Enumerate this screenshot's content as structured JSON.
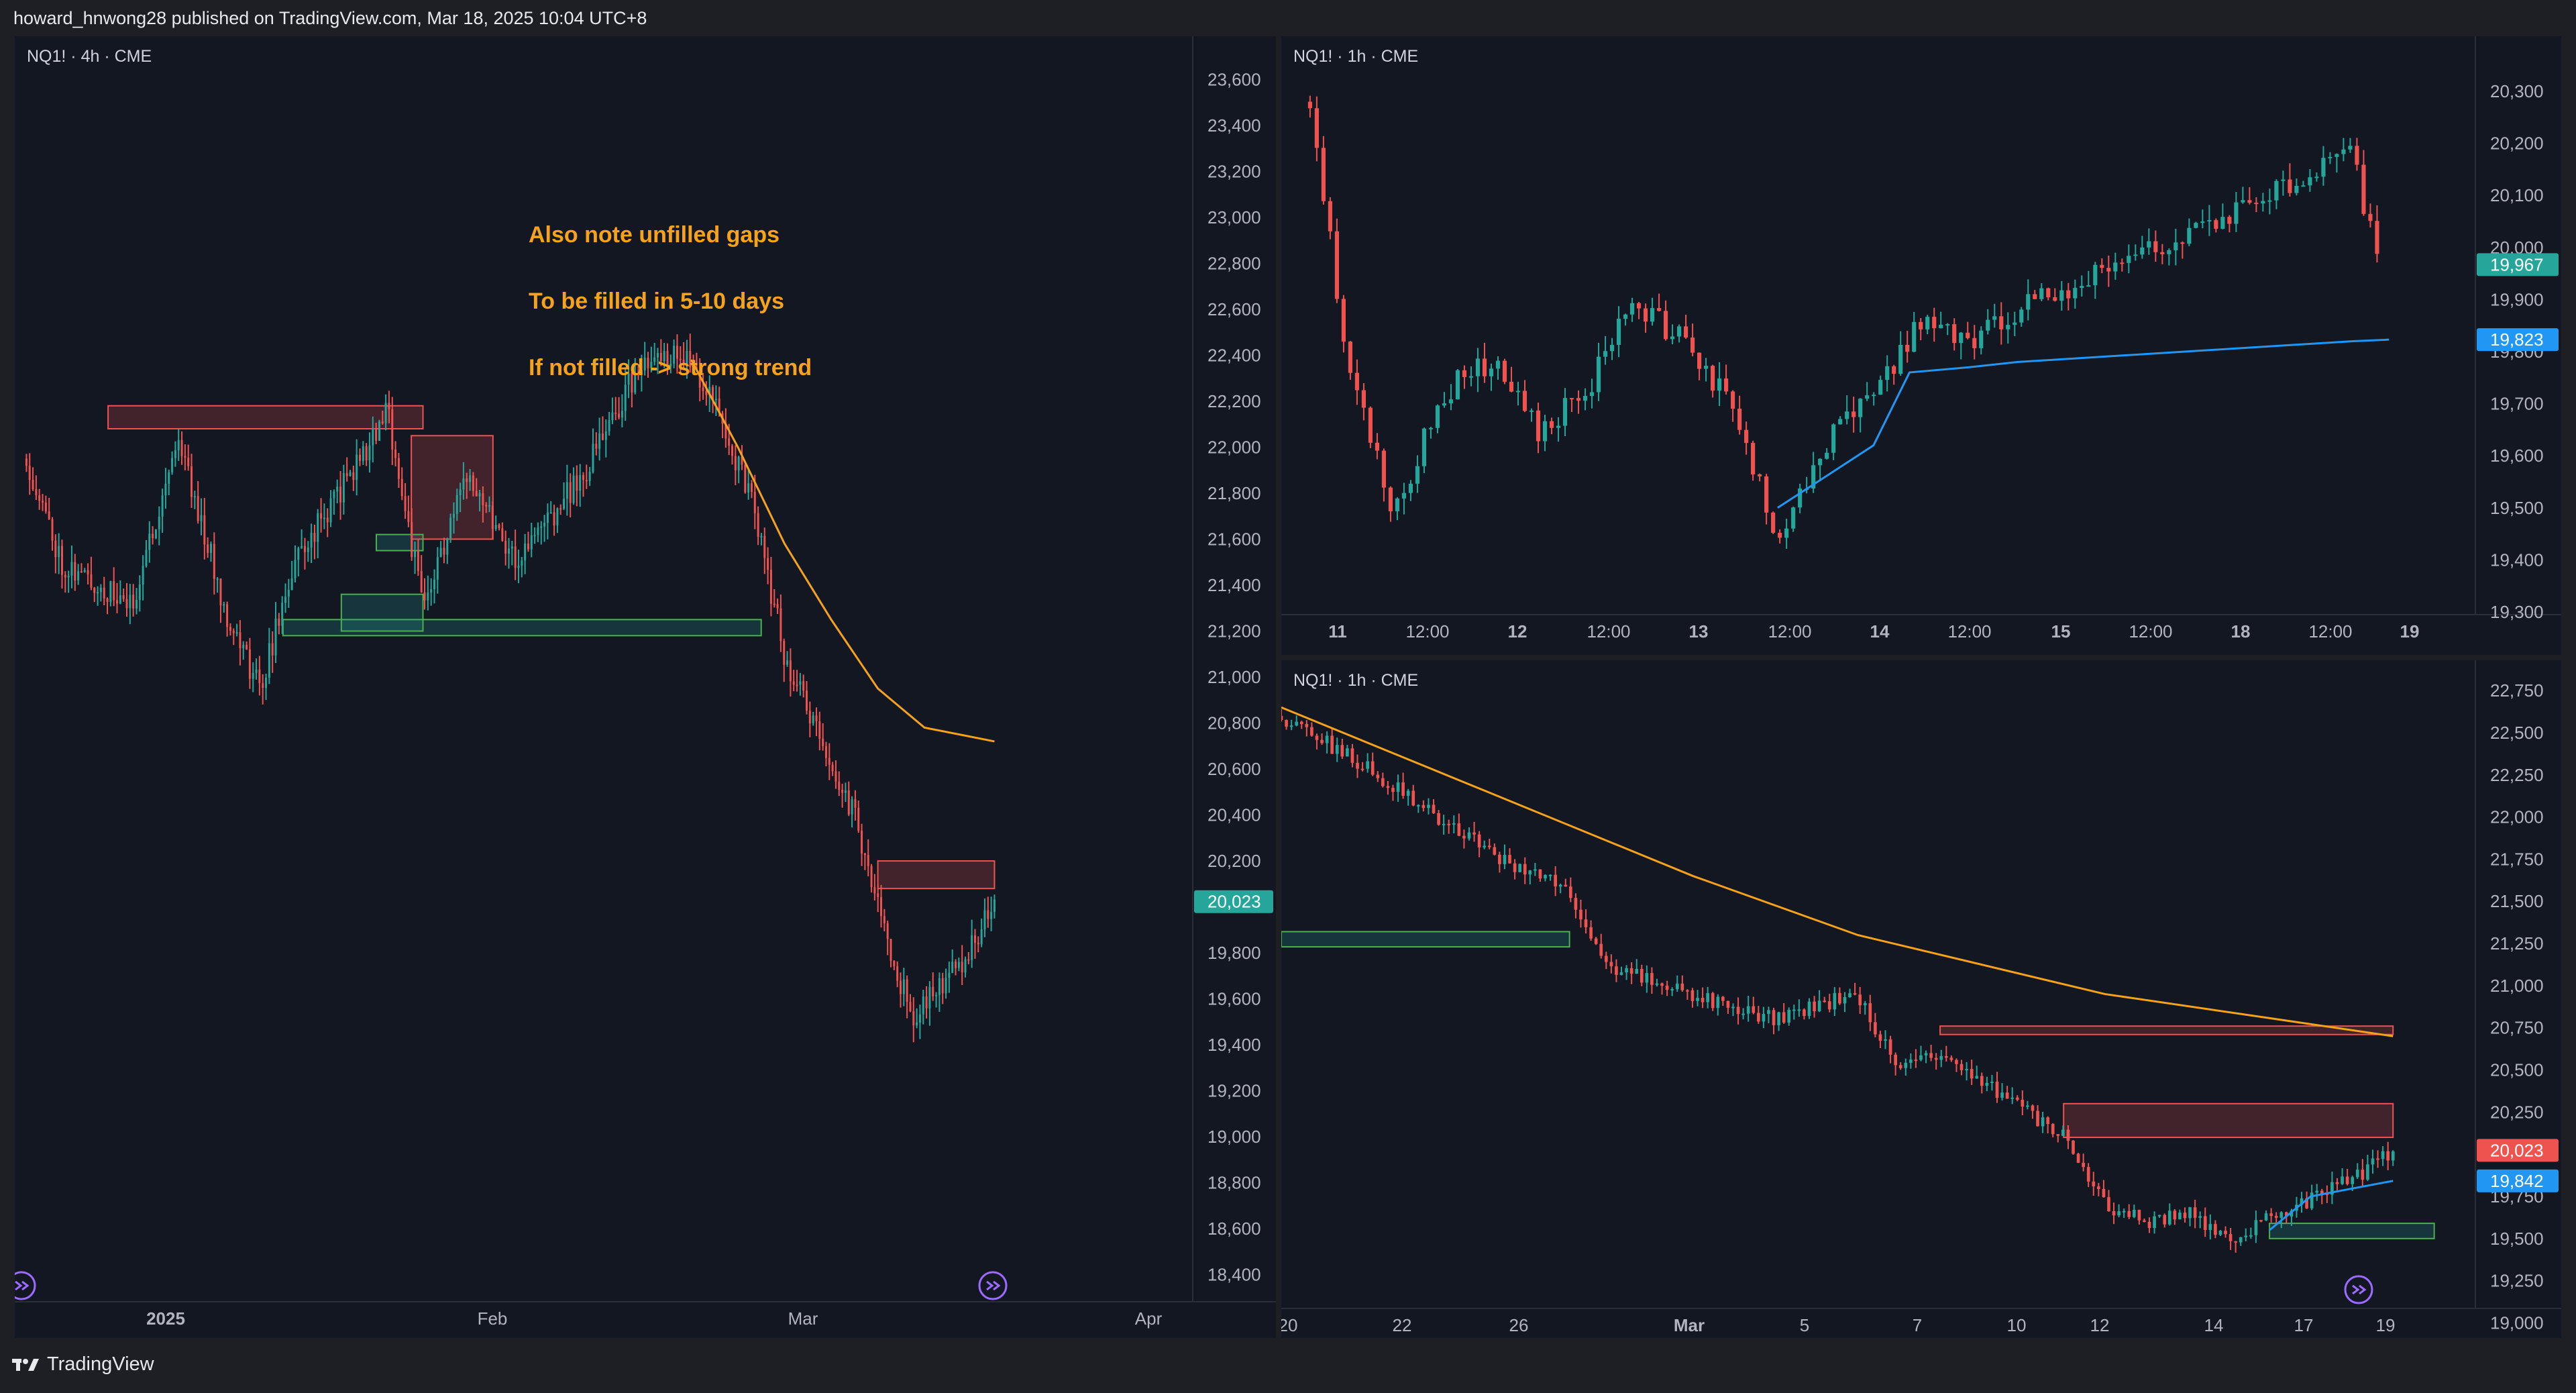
{
  "header": {
    "publish_text": "howard_hnwong28 published on TradingView.com, Mar 18, 2025 10:04 UTC+8"
  },
  "footer": {
    "brand": "TradingView",
    "logo_icon": "tradingview-logo-icon"
  },
  "colors": {
    "background": "#131722",
    "up": "#26a69a",
    "down": "#ef5350",
    "ema_orange": "#f7a21b",
    "vwap_blue": "#2196f3",
    "axis_text": "#b2b5be"
  },
  "panes": [
    {
      "id": "left",
      "title": "NQ1! · 4h · CME",
      "annotation": [
        "Also note unfilled gaps",
        "To be filled in 5-10 days",
        "If not filled -> strong trend"
      ],
      "price_badges": [
        {
          "label": "20,023",
          "color": "#26a69a"
        }
      ],
      "y_ticks": [
        "23,600",
        "23,400",
        "23,200",
        "23,000",
        "22,800",
        "22,600",
        "22,400",
        "22,200",
        "22,000",
        "21,800",
        "21,600",
        "21,400",
        "21,200",
        "21,000",
        "20,800",
        "20,600",
        "20,400",
        "20,200",
        "19,800",
        "19,600",
        "19,400",
        "19,200",
        "19,000",
        "18,800",
        "18,600",
        "18,400"
      ],
      "x_ticks": [
        "2025",
        "Feb",
        "Mar",
        "Apr"
      ],
      "icons": [
        "replay-icon",
        "scroll-to-realtime-icon"
      ]
    },
    {
      "id": "top-right",
      "title": "NQ1! · 1h · CME",
      "price_badges": [
        {
          "label": "19,967",
          "color": "#26a69a"
        },
        {
          "label": "19,823",
          "color": "#2196f3"
        }
      ],
      "y_ticks": [
        "20,300",
        "20,200",
        "20,100",
        "20,000",
        "19,900",
        "19,800",
        "19,700",
        "19,600",
        "19,500",
        "19,400",
        "19,300"
      ],
      "x_ticks": [
        "11",
        "12:00",
        "12",
        "12:00",
        "13",
        "12:00",
        "14",
        "12:00",
        "15",
        "12:00",
        "18",
        "12:00",
        "19"
      ]
    },
    {
      "id": "bottom-right",
      "title": "NQ1! · 1h · CME",
      "price_badges": [
        {
          "label": "20,023",
          "color": "#ef5350"
        },
        {
          "label": "19,842",
          "color": "#2196f3"
        }
      ],
      "y_ticks": [
        "22,750",
        "22,500",
        "22,250",
        "22,000",
        "21,750",
        "21,500",
        "21,250",
        "21,000",
        "20,750",
        "20,500",
        "20,250",
        "19,750",
        "19,500",
        "19,250",
        "19,000"
      ],
      "x_ticks": [
        "20",
        "22",
        "26",
        "Mar",
        "5",
        "7",
        "10",
        "12",
        "14",
        "17",
        "19"
      ],
      "icons": [
        "scroll-to-realtime-icon"
      ]
    }
  ],
  "chart_data": [
    {
      "type": "candlestick",
      "pane": "left",
      "symbol": "NQ1!",
      "interval": "4h",
      "exchange": "CME",
      "ylim": [
        18300,
        23700
      ],
      "x_range": [
        "2024-12-23",
        "2025-04-03"
      ],
      "key_points": [
        {
          "date": "2024-12-24",
          "price": 21950
        },
        {
          "date": "2024-12-27",
          "price": 21500
        },
        {
          "date": "2025-01-02",
          "price": 21300
        },
        {
          "date": "2025-01-06",
          "price": 22050
        },
        {
          "date": "2025-01-10",
          "price": 21300
        },
        {
          "date": "2025-01-13",
          "price": 20950
        },
        {
          "date": "2025-01-16",
          "price": 21500
        },
        {
          "date": "2025-01-21",
          "price": 21900
        },
        {
          "date": "2025-01-24",
          "price": 22150
        },
        {
          "date": "2025-01-27",
          "price": 21300
        },
        {
          "date": "2025-01-31",
          "price": 21900
        },
        {
          "date": "2025-02-04",
          "price": 21500
        },
        {
          "date": "2025-02-10",
          "price": 21900
        },
        {
          "date": "2025-02-14",
          "price": 22300
        },
        {
          "date": "2025-02-18",
          "price": 22420
        },
        {
          "date": "2025-02-20",
          "price": 22300
        },
        {
          "date": "2025-02-24",
          "price": 21800
        },
        {
          "date": "2025-02-27",
          "price": 21100
        },
        {
          "date": "2025-03-03",
          "price": 20600
        },
        {
          "date": "2025-03-05",
          "price": 20400
        },
        {
          "date": "2025-03-07",
          "price": 20000
        },
        {
          "date": "2025-03-10",
          "price": 19500
        },
        {
          "date": "2025-03-12",
          "price": 19650
        },
        {
          "date": "2025-03-14",
          "price": 19750
        },
        {
          "date": "2025-03-17",
          "price": 20023
        }
      ],
      "ema_line": [
        {
          "date": "2025-02-19",
          "price": 22380
        },
        {
          "date": "2025-02-23",
          "price": 22000
        },
        {
          "date": "2025-02-27",
          "price": 21580
        },
        {
          "date": "2025-03-03",
          "price": 21250
        },
        {
          "date": "2025-03-07",
          "price": 20950
        },
        {
          "date": "2025-03-11",
          "price": 20780
        },
        {
          "date": "2025-03-17",
          "price": 20720
        }
      ],
      "zones": [
        {
          "color": "red",
          "x0": "2024-12-31",
          "x1": "2025-01-27",
          "y0": 22080,
          "y1": 22180
        },
        {
          "color": "red",
          "x0": "2025-01-26",
          "x1": "2025-02-02",
          "y0": 21600,
          "y1": 22050
        },
        {
          "color": "green",
          "x0": "2025-01-23",
          "x1": "2025-01-27",
          "y0": 21550,
          "y1": 21620
        },
        {
          "color": "green",
          "x0": "2025-01-15",
          "x1": "2025-02-25",
          "y0": 21180,
          "y1": 21250
        },
        {
          "color": "green",
          "x0": "2025-01-20",
          "x1": "2025-01-27",
          "y0": 21200,
          "y1": 21360
        },
        {
          "color": "red",
          "x0": "2025-03-07",
          "x1": "2025-03-17",
          "y0": 20080,
          "y1": 20200
        }
      ],
      "last_price": 20023
    },
    {
      "type": "candlestick",
      "pane": "top-right",
      "symbol": "NQ1!",
      "interval": "1h",
      "exchange": "CME",
      "ylim": [
        19220,
        20380
      ],
      "key_points": [
        {
          "t": "11 00:00",
          "price": 20280
        },
        {
          "t": "11 06:00",
          "price": 19800
        },
        {
          "t": "11 14:00",
          "price": 19480
        },
        {
          "t": "11 22:00",
          "price": 19720
        },
        {
          "t": "12 06:00",
          "price": 19780
        },
        {
          "t": "12 14:00",
          "price": 19650
        },
        {
          "t": "12 22:00",
          "price": 19720
        },
        {
          "t": "13 06:00",
          "price": 19900
        },
        {
          "t": "13 14:00",
          "price": 19820
        },
        {
          "t": "13 22:00",
          "price": 19700
        },
        {
          "t": "14 06:00",
          "price": 19450
        },
        {
          "t": "14 14:00",
          "price": 19620
        },
        {
          "t": "14 22:00",
          "price": 19720
        },
        {
          "t": "15 06:00",
          "price": 19860
        },
        {
          "t": "15 14:00",
          "price": 19820
        },
        {
          "t": "15 22:00",
          "price": 19880
        },
        {
          "t": "18 06:00",
          "price": 20180
        },
        {
          "t": "18 10:00",
          "price": 19967
        }
      ],
      "vwap_line": [
        {
          "t": "14 06:00",
          "price": 19500
        },
        {
          "t": "14 14:00",
          "price": 19560
        },
        {
          "t": "14 22:00",
          "price": 19620
        },
        {
          "t": "15 04:00",
          "price": 19760
        },
        {
          "t": "15 14:00",
          "price": 19770
        },
        {
          "t": "15 22:00",
          "price": 19780
        },
        {
          "t": "18 06:00",
          "price": 19820
        },
        {
          "t": "18 12:00",
          "price": 19823
        }
      ],
      "last_price": 19967,
      "vwap_price": 19823
    },
    {
      "type": "candlestick",
      "pane": "bottom-right",
      "symbol": "NQ1!",
      "interval": "1h",
      "exchange": "CME",
      "ylim": [
        18950,
        22850
      ],
      "key_points": [
        {
          "date": "2025-02-19",
          "price": 22600
        },
        {
          "date": "2025-02-21",
          "price": 22300
        },
        {
          "date": "2025-02-24",
          "price": 21800
        },
        {
          "date": "2025-02-26",
          "price": 21550
        },
        {
          "date": "2025-02-27",
          "price": 21100
        },
        {
          "date": "2025-03-03",
          "price": 20800
        },
        {
          "date": "2025-03-05",
          "price": 20950
        },
        {
          "date": "2025-03-06",
          "price": 20500
        },
        {
          "date": "2025-03-07",
          "price": 20600
        },
        {
          "date": "2025-03-10",
          "price": 20100
        },
        {
          "date": "2025-03-11",
          "price": 19700
        },
        {
          "date": "2025-03-12",
          "price": 19600
        },
        {
          "date": "2025-03-13",
          "price": 19650
        },
        {
          "date": "2025-03-14",
          "price": 19500
        },
        {
          "date": "2025-03-17",
          "price": 19850
        },
        {
          "date": "2025-03-18",
          "price": 20023
        }
      ],
      "ema_line": [
        {
          "date": "2025-02-19",
          "price": 22650
        },
        {
          "date": "2025-02-24",
          "price": 22150
        },
        {
          "date": "2025-03-01",
          "price": 21650
        },
        {
          "date": "2025-03-05",
          "price": 21300
        },
        {
          "date": "2025-03-11",
          "price": 20950
        },
        {
          "date": "2025-03-18",
          "price": 20700
        }
      ],
      "vwap_line": [
        {
          "date": "2025-03-15",
          "price": 19550
        },
        {
          "date": "2025-03-16",
          "price": 19750
        },
        {
          "date": "2025-03-18",
          "price": 19842
        }
      ],
      "zones": [
        {
          "color": "red",
          "x0": "2025-03-07",
          "x1": "2025-03-18",
          "y0": 20710,
          "y1": 20760
        },
        {
          "color": "red",
          "x0": "2025-03-10",
          "x1": "2025-03-18",
          "y0": 20100,
          "y1": 20300
        },
        {
          "color": "green",
          "x0": "2025-02-19",
          "x1": "2025-02-26",
          "y0": 21230,
          "y1": 21320
        },
        {
          "color": "green",
          "x0": "2025-03-15",
          "x1": "2025-03-19",
          "y0": 19500,
          "y1": 19590
        }
      ],
      "last_price": 20023,
      "vwap_price": 19842
    }
  ]
}
